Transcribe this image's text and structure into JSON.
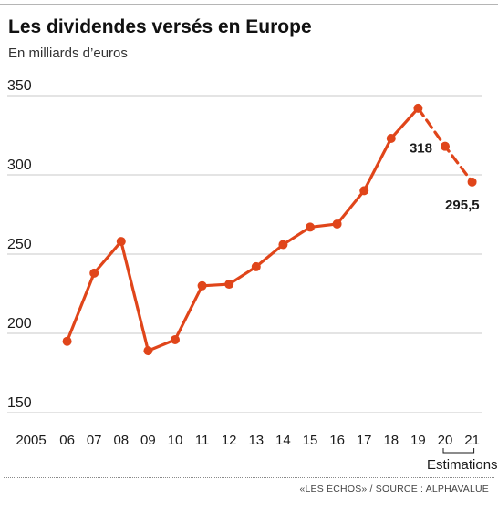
{
  "header": {
    "title": "Les dividendes versés en Europe",
    "subtitle": "En milliards d’euros"
  },
  "footer": {
    "source": "«LES ÉCHOS» / SOURCE : ALPHAVALUE"
  },
  "colors": {
    "series": "#e0451a",
    "grid": "#c8c8c8",
    "text": "#1a1a1a"
  },
  "chart_data": {
    "type": "line",
    "title": "Les dividendes versés en Europe",
    "subtitle": "En milliards d’euros",
    "xlabel": "",
    "ylabel": "",
    "x_tick_labels": [
      "2005",
      "06",
      "07",
      "08",
      "09",
      "10",
      "11",
      "12",
      "13",
      "14",
      "15",
      "16",
      "17",
      "18",
      "19",
      "20",
      "21"
    ],
    "ylim": [
      150,
      350
    ],
    "y_ticks": [
      150,
      200,
      250,
      300,
      350
    ],
    "grid": "horizontal",
    "series": [
      {
        "x": [
          "06",
          "07",
          "08",
          "09",
          "10",
          "11",
          "12",
          "13",
          "14",
          "15",
          "16",
          "17",
          "18",
          "19"
        ],
        "values": [
          195,
          238,
          258,
          189,
          196,
          230,
          231,
          242,
          256,
          267,
          269,
          290,
          323,
          342
        ],
        "style": "solid"
      },
      {
        "x": [
          "19",
          "20",
          "21"
        ],
        "values": [
          342,
          318,
          295.5
        ],
        "style": "dashed"
      }
    ],
    "data_labels": [
      {
        "x": "20",
        "value": 318,
        "text": "318"
      },
      {
        "x": "21",
        "value": 295.5,
        "text": "295,5"
      }
    ],
    "annotations": [
      {
        "text": "Estimations",
        "span": [
          "20",
          "21"
        ]
      }
    ]
  }
}
